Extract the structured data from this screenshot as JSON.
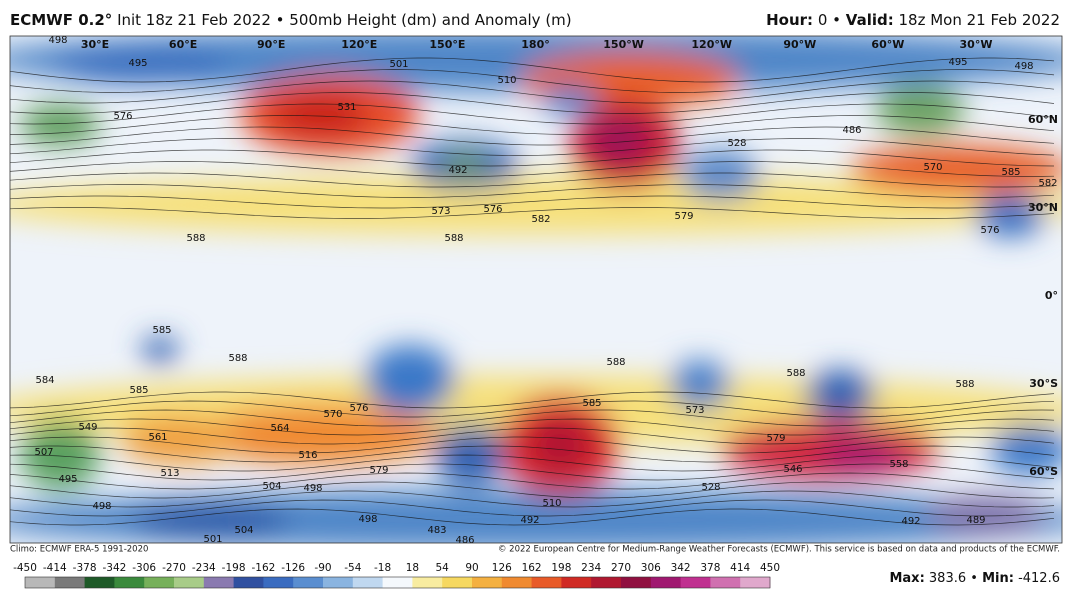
{
  "header": {
    "model": "ECMWF 0.2°",
    "description": "Init 18z 21 Feb 2022 • 500mb Height (dm) and Anomaly (m)",
    "hour_label": "Hour:",
    "hour": "0 •",
    "valid_label": "Valid:",
    "valid": "18z Mon 21 Feb 2022"
  },
  "map": {
    "longitudes": [
      "30°E",
      "60°E",
      "90°E",
      "120°E",
      "150°E",
      "180°",
      "150°W",
      "120°W",
      "90°W",
      "60°W",
      "30°W"
    ],
    "latitudes": [
      "60°N",
      "30°N",
      "0°",
      "30°S",
      "60°S"
    ],
    "contour_labels": [
      498,
      495,
      576,
      531,
      501,
      510,
      492,
      573,
      576,
      582,
      588,
      588,
      579,
      528,
      495,
      498,
      486,
      570,
      585,
      582,
      576,
      585,
      588,
      588,
      588,
      588,
      585,
      570,
      576,
      585,
      573,
      579,
      546,
      558,
      549,
      507,
      495,
      561,
      564,
      516,
      579,
      513,
      498,
      504,
      498,
      510,
      528,
      492,
      498,
      504,
      501,
      483,
      486,
      492,
      489,
      584
    ]
  },
  "footer": {
    "climo": "Climo: ECMWF ERA-5 1991-2020",
    "copyright": "© 2022 European Centre for Medium-Range Weather Forecasts (ECMWF). This service is based on data and products of the ECMWF.",
    "scale": [
      -450,
      -414,
      -378,
      -342,
      -306,
      -270,
      -234,
      -198,
      -162,
      -126,
      -90,
      -54,
      -18,
      18,
      54,
      90,
      126,
      162,
      198,
      234,
      270,
      306,
      342,
      378,
      414,
      450
    ],
    "max_label": "Max:",
    "max": 383.6,
    "separator": "•",
    "min_label": "Min:",
    "min": -412.6
  }
}
